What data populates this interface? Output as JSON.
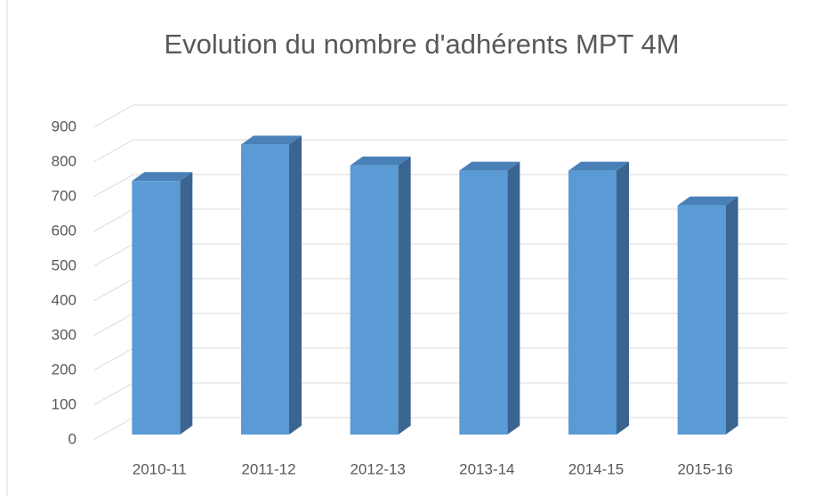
{
  "chart_data": {
    "type": "bar3d",
    "title": "Evolution du nombre d'adhérents MPT 4M",
    "categories": [
      "2010-11",
      "2011-12",
      "2012-13",
      "2013-14",
      "2014-15",
      "2015-16"
    ],
    "values": [
      730,
      835,
      775,
      760,
      760,
      660
    ],
    "color": "#5b9bd5",
    "ylim": [
      0,
      900
    ],
    "yticks": [
      0,
      100,
      200,
      300,
      400,
      500,
      600,
      700,
      800,
      900
    ],
    "grid": true
  }
}
